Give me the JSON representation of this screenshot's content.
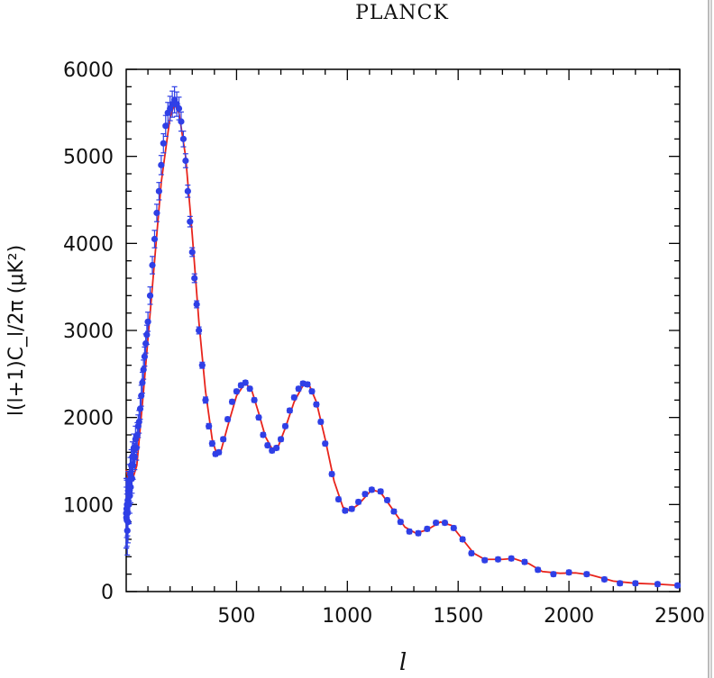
{
  "chart_data": {
    "type": "scatter",
    "title": "PLANCK",
    "xlabel": "l",
    "ylabel": "l(l+1)C_l/2π (μK²)",
    "xlim": [
      2,
      2500
    ],
    "ylim": [
      0,
      6000
    ],
    "x_ticks": [
      500,
      1000,
      1500,
      2000,
      2500
    ],
    "x_tick_labels": [
      "500",
      "1000",
      "1500",
      "2000",
      "2500"
    ],
    "y_ticks": [
      0,
      1000,
      2000,
      3000,
      4000,
      5000,
      6000
    ],
    "y_tick_labels": [
      "0",
      "1000",
      "2000",
      "3000",
      "4000",
      "5000",
      "6000"
    ],
    "grid": false,
    "series": [
      {
        "kind": "points",
        "color": "#2f3fe6",
        "points": [
          [
            2,
            900,
            400
          ],
          [
            3,
            850,
            350
          ],
          [
            4,
            950,
            330
          ],
          [
            5,
            820,
            300
          ],
          [
            6,
            1000,
            300
          ],
          [
            7,
            700,
            280
          ],
          [
            8,
            900,
            260
          ],
          [
            9,
            1050,
            250
          ],
          [
            10,
            800,
            240
          ],
          [
            12,
            1150,
            230
          ],
          [
            14,
            1000,
            220
          ],
          [
            16,
            1250,
            210
          ],
          [
            18,
            1100,
            200
          ],
          [
            20,
            1350,
            190
          ],
          [
            22,
            1200,
            180
          ],
          [
            25,
            1450,
            180
          ],
          [
            28,
            1300,
            170
          ],
          [
            30,
            1550,
            170
          ],
          [
            33,
            1450,
            160
          ],
          [
            36,
            1650,
            160
          ],
          [
            40,
            1550,
            150
          ],
          [
            44,
            1750,
            150
          ],
          [
            48,
            1650,
            140
          ],
          [
            52,
            1800,
            140
          ],
          [
            56,
            1900,
            130
          ],
          [
            60,
            1950,
            130
          ],
          [
            65,
            2100,
            120
          ],
          [
            70,
            2250,
            120
          ],
          [
            75,
            2400,
            120
          ],
          [
            80,
            2550,
            110
          ],
          [
            85,
            2700,
            110
          ],
          [
            90,
            2850,
            110
          ],
          [
            95,
            2950,
            110
          ],
          [
            100,
            3100,
            110
          ],
          [
            110,
            3400,
            100
          ],
          [
            120,
            3750,
            100
          ],
          [
            130,
            4050,
            100
          ],
          [
            140,
            4350,
            100
          ],
          [
            150,
            4600,
            100
          ],
          [
            160,
            4900,
            110
          ],
          [
            170,
            5150,
            110
          ],
          [
            180,
            5350,
            120
          ],
          [
            190,
            5500,
            120
          ],
          [
            200,
            5550,
            140
          ],
          [
            210,
            5600,
            150
          ],
          [
            220,
            5650,
            150
          ],
          [
            230,
            5600,
            140
          ],
          [
            240,
            5550,
            130
          ],
          [
            250,
            5400,
            110
          ],
          [
            260,
            5200,
            90
          ],
          [
            270,
            4950,
            80
          ],
          [
            280,
            4600,
            70
          ],
          [
            290,
            4250,
            60
          ],
          [
            300,
            3900,
            50
          ],
          [
            310,
            3600,
            50
          ],
          [
            320,
            3300,
            40
          ],
          [
            330,
            3000,
            40
          ],
          [
            345,
            2600,
            35
          ],
          [
            360,
            2200,
            35
          ],
          [
            375,
            1900,
            30
          ],
          [
            390,
            1700,
            30
          ],
          [
            405,
            1580,
            25
          ],
          [
            420,
            1600,
            25
          ],
          [
            440,
            1750,
            25
          ],
          [
            460,
            1980,
            25
          ],
          [
            480,
            2180,
            25
          ],
          [
            500,
            2300,
            25
          ],
          [
            520,
            2370,
            25
          ],
          [
            540,
            2400,
            25
          ],
          [
            560,
            2330,
            25
          ],
          [
            580,
            2200,
            25
          ],
          [
            600,
            2000,
            25
          ],
          [
            620,
            1800,
            25
          ],
          [
            640,
            1680,
            25
          ],
          [
            660,
            1620,
            25
          ],
          [
            680,
            1650,
            25
          ],
          [
            700,
            1750,
            25
          ],
          [
            720,
            1900,
            25
          ],
          [
            740,
            2080,
            25
          ],
          [
            760,
            2230,
            25
          ],
          [
            780,
            2330,
            25
          ],
          [
            800,
            2390,
            25
          ],
          [
            820,
            2380,
            25
          ],
          [
            840,
            2300,
            25
          ],
          [
            860,
            2150,
            25
          ],
          [
            880,
            1950,
            25
          ],
          [
            900,
            1700,
            25
          ],
          [
            930,
            1350,
            25
          ],
          [
            960,
            1060,
            25
          ],
          [
            990,
            930,
            25
          ],
          [
            1020,
            950,
            25
          ],
          [
            1050,
            1030,
            25
          ],
          [
            1080,
            1120,
            25
          ],
          [
            1110,
            1170,
            25
          ],
          [
            1150,
            1150,
            25
          ],
          [
            1180,
            1050,
            25
          ],
          [
            1210,
            920,
            25
          ],
          [
            1240,
            800,
            25
          ],
          [
            1280,
            690,
            25
          ],
          [
            1320,
            670,
            25
          ],
          [
            1360,
            720,
            25
          ],
          [
            1400,
            790,
            25
          ],
          [
            1440,
            790,
            25
          ],
          [
            1480,
            730,
            25
          ],
          [
            1520,
            600,
            25
          ],
          [
            1560,
            440,
            25
          ],
          [
            1620,
            360,
            25
          ],
          [
            1680,
            370,
            25
          ],
          [
            1740,
            380,
            25
          ],
          [
            1800,
            340,
            25
          ],
          [
            1860,
            250,
            25
          ],
          [
            1930,
            200,
            25
          ],
          [
            2000,
            220,
            25
          ],
          [
            2080,
            200,
            25
          ],
          [
            2160,
            140,
            25
          ],
          [
            2230,
            95,
            25
          ],
          [
            2300,
            95,
            25
          ],
          [
            2400,
            85,
            25
          ],
          [
            2490,
            70,
            25
          ]
        ]
      },
      {
        "kind": "model-curve",
        "color": "#e8241c",
        "points": [
          [
            2,
            1400
          ],
          [
            20,
            1200
          ],
          [
            50,
            1450
          ],
          [
            80,
            2300
          ],
          [
            120,
            3500
          ],
          [
            160,
            4700
          ],
          [
            200,
            5450
          ],
          [
            220,
            5600
          ],
          [
            240,
            5500
          ],
          [
            270,
            5000
          ],
          [
            300,
            4100
          ],
          [
            330,
            3100
          ],
          [
            360,
            2300
          ],
          [
            390,
            1750
          ],
          [
            410,
            1580
          ],
          [
            430,
            1620
          ],
          [
            460,
            1900
          ],
          [
            500,
            2250
          ],
          [
            540,
            2400
          ],
          [
            570,
            2300
          ],
          [
            600,
            2050
          ],
          [
            630,
            1780
          ],
          [
            660,
            1640
          ],
          [
            690,
            1680
          ],
          [
            720,
            1880
          ],
          [
            760,
            2180
          ],
          [
            800,
            2370
          ],
          [
            830,
            2360
          ],
          [
            860,
            2180
          ],
          [
            900,
            1750
          ],
          [
            940,
            1270
          ],
          [
            980,
            970
          ],
          [
            1010,
            930
          ],
          [
            1050,
            1000
          ],
          [
            1110,
            1170
          ],
          [
            1150,
            1140
          ],
          [
            1200,
            960
          ],
          [
            1260,
            740
          ],
          [
            1310,
            670
          ],
          [
            1360,
            710
          ],
          [
            1420,
            800
          ],
          [
            1470,
            760
          ],
          [
            1520,
            600
          ],
          [
            1570,
            440
          ],
          [
            1620,
            370
          ],
          [
            1700,
            370
          ],
          [
            1750,
            380
          ],
          [
            1820,
            320
          ],
          [
            1880,
            230
          ],
          [
            1960,
            210
          ],
          [
            2030,
            215
          ],
          [
            2100,
            190
          ],
          [
            2200,
            120
          ],
          [
            2300,
            95
          ],
          [
            2400,
            85
          ],
          [
            2500,
            70
          ]
        ]
      }
    ]
  }
}
